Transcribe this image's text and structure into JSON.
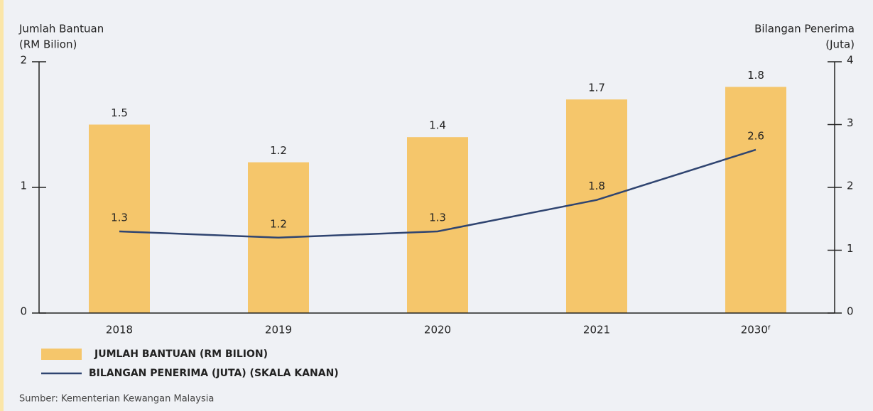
{
  "chart_data": {
    "type": "bar",
    "y_axis_label": [
      "Jumlah Bantuan",
      "(RM Bilion)"
    ],
    "y2_axis_label": [
      "Bilangan Penerima",
      "(Juta)"
    ],
    "categories": [
      "2018",
      "2019",
      "2020",
      "2021",
      "2030ᶠ"
    ],
    "series": [
      {
        "name": "JUMLAH BANTUAN (RM BILION)",
        "type": "bar",
        "color": "#f5c66b",
        "values": [
          1.5,
          1.2,
          1.4,
          1.7,
          1.8
        ]
      },
      {
        "name": "BILANGAN PENERIMA (JUTA) (SKALA KANAN)",
        "type": "line",
        "axis": "y2",
        "color": "#2f4470",
        "values": [
          1.3,
          1.2,
          1.3,
          1.8,
          2.6
        ]
      }
    ],
    "ylim": [
      0,
      2
    ],
    "yticks": [
      0,
      1,
      2
    ],
    "y2lim": [
      0,
      4
    ],
    "y2ticks": [
      0,
      1,
      2,
      3,
      4
    ],
    "source": "Sumber: Kementerian Kewangan Malaysia"
  }
}
